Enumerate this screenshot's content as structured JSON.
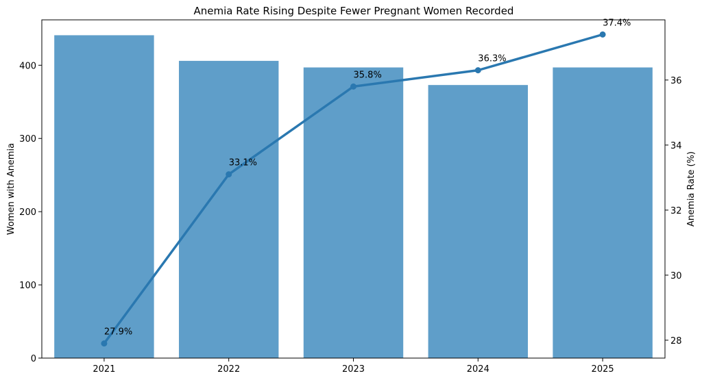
{
  "chart_data": {
    "type": "bar",
    "title": "Anemia Rate Rising Despite Fewer Pregnant Women Recorded",
    "xlabel": "",
    "ylabel": "Women with Anemia",
    "y2label": "Anemia Rate (%)",
    "categories": [
      "2021",
      "2022",
      "2023",
      "2024",
      "2025"
    ],
    "series": [
      {
        "type": "bar",
        "axis": "left",
        "values": [
          441,
          406,
          397,
          373,
          397
        ],
        "color": "#5f9ec9"
      },
      {
        "type": "line",
        "axis": "right",
        "values": [
          27.9,
          33.1,
          35.8,
          36.3,
          37.4
        ],
        "color": "#2a78b0",
        "labels": [
          "27.9%",
          "33.1%",
          "35.8%",
          "36.3%",
          "37.4%"
        ]
      }
    ],
    "ylim": [
      0,
      462
    ],
    "y2lim": [
      27.45,
      37.85
    ],
    "yticks": [
      0,
      100,
      200,
      300,
      400
    ],
    "y2ticks": [
      28,
      30,
      32,
      34,
      36
    ],
    "grid": false,
    "legend": "none"
  }
}
